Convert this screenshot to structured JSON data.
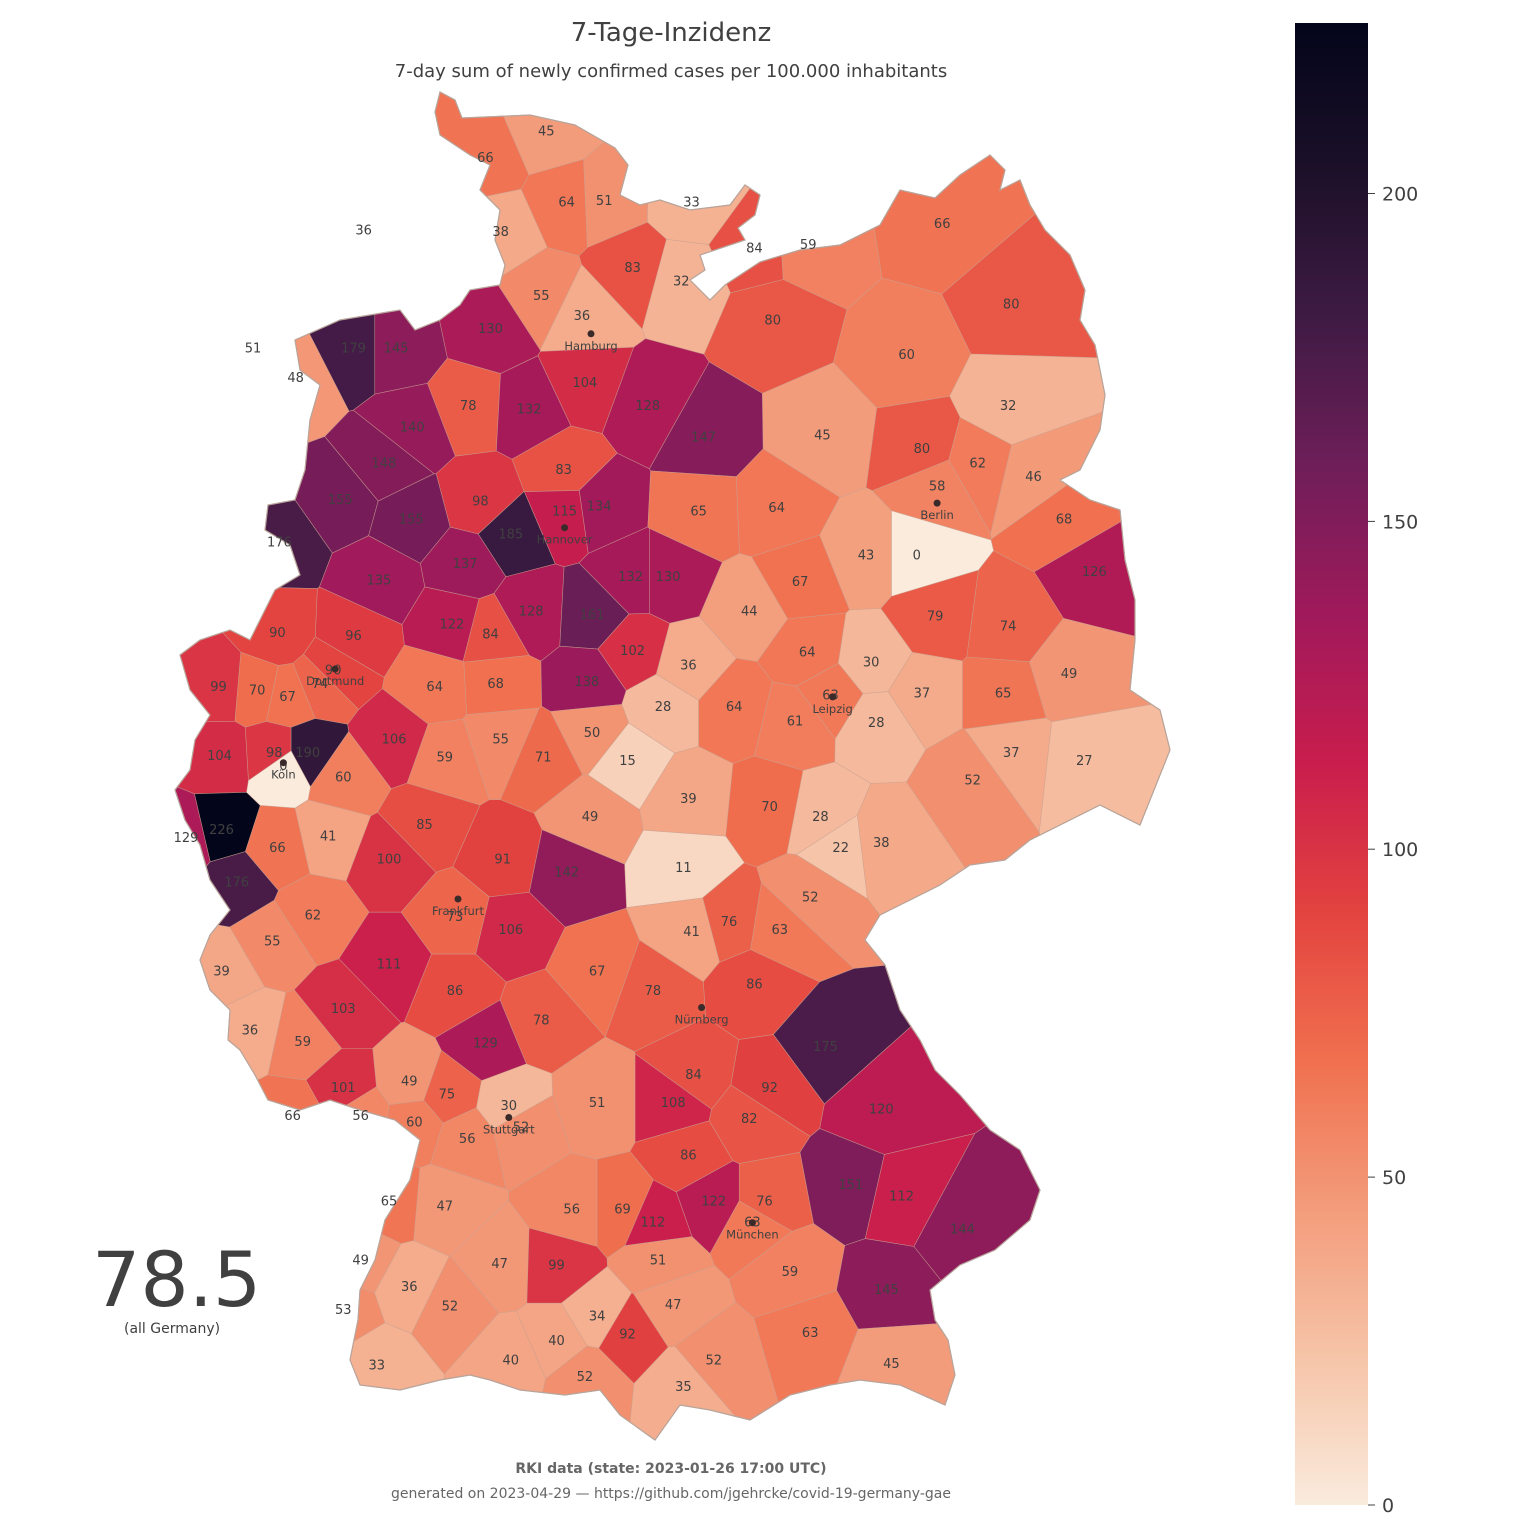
{
  "title": "7-Tage-Inzidenz",
  "subtitle": "7-day sum of newly confirmed cases per 100.000 inhabitants",
  "summary": {
    "value": "78.5",
    "caption": "(all Germany)"
  },
  "footer": {
    "source": "RKI data (state: 2023-01-26 17:00 UTC)",
    "generated": "generated on 2023-04-29 — https://github.com/jgehrcke/covid-19-germany-gae"
  },
  "colors": {
    "scale_stops": [
      "#faebdd",
      "#f6c4a8",
      "#f39c7b",
      "#f0704f",
      "#e3433f",
      "#c91d4d",
      "#a01a5b",
      "#6f1e59",
      "#3f1b44",
      "#1c1029",
      "#03051a"
    ],
    "land_outline": "#b8a49a",
    "background": "#ffffff"
  },
  "chart_data": {
    "type": "choropleth",
    "metric": "7-day incidence per 100.000 inhabitants",
    "colorbar": {
      "min": 0,
      "max": 226,
      "ticks": [
        0,
        50,
        100,
        150,
        200
      ]
    },
    "cities": [
      {
        "name": "Hamburg",
        "lon": 9.99,
        "lat": 53.55
      },
      {
        "name": "Berlin",
        "lon": 13.4,
        "lat": 52.52
      },
      {
        "name": "Hannover",
        "lon": 9.73,
        "lat": 52.37
      },
      {
        "name": "Dortmund",
        "lon": 7.47,
        "lat": 51.51
      },
      {
        "name": "Köln",
        "lon": 6.96,
        "lat": 50.94
      },
      {
        "name": "Leipzig",
        "lon": 12.37,
        "lat": 51.34
      },
      {
        "name": "Frankfurt",
        "lon": 8.68,
        "lat": 50.11
      },
      {
        "name": "Nürnberg",
        "lon": 11.08,
        "lat": 49.45
      },
      {
        "name": "Stuttgart",
        "lon": 9.18,
        "lat": 48.78
      },
      {
        "name": "München",
        "lon": 11.58,
        "lat": 48.14
      }
    ],
    "district_values": [
      {
        "lon": 9.55,
        "lat": 54.78,
        "value": 45
      },
      {
        "lon": 8.95,
        "lat": 54.62,
        "value": 66
      },
      {
        "lon": 9.75,
        "lat": 54.35,
        "value": 64
      },
      {
        "lon": 10.12,
        "lat": 54.36,
        "value": 51
      },
      {
        "lon": 10.98,
        "lat": 54.35,
        "value": 33
      },
      {
        "lon": 9.1,
        "lat": 54.17,
        "value": 38
      },
      {
        "lon": 7.75,
        "lat": 54.18,
        "value": 36
      },
      {
        "lon": 11.6,
        "lat": 54.07,
        "value": 84
      },
      {
        "lon": 12.13,
        "lat": 54.09,
        "value": 59
      },
      {
        "lon": 13.45,
        "lat": 54.22,
        "value": 66
      },
      {
        "lon": 10.4,
        "lat": 53.95,
        "value": 83
      },
      {
        "lon": 10.88,
        "lat": 53.87,
        "value": 32
      },
      {
        "lon": 9.5,
        "lat": 53.78,
        "value": 55
      },
      {
        "lon": 9.9,
        "lat": 53.66,
        "value": 36
      },
      {
        "lon": 11.78,
        "lat": 53.63,
        "value": 80
      },
      {
        "lon": 14.13,
        "lat": 53.73,
        "value": 80
      },
      {
        "lon": 9.0,
        "lat": 53.58,
        "value": 130
      },
      {
        "lon": 13.1,
        "lat": 53.42,
        "value": 60
      },
      {
        "lon": 6.66,
        "lat": 53.46,
        "value": 51
      },
      {
        "lon": 7.65,
        "lat": 53.46,
        "value": 179
      },
      {
        "lon": 8.07,
        "lat": 53.46,
        "value": 145
      },
      {
        "lon": 7.08,
        "lat": 53.28,
        "value": 48
      },
      {
        "lon": 9.93,
        "lat": 53.25,
        "value": 104
      },
      {
        "lon": 8.78,
        "lat": 53.11,
        "value": 78
      },
      {
        "lon": 9.38,
        "lat": 53.09,
        "value": 132
      },
      {
        "lon": 10.55,
        "lat": 53.11,
        "value": 128
      },
      {
        "lon": 14.1,
        "lat": 53.11,
        "value": 32
      },
      {
        "lon": 8.23,
        "lat": 52.98,
        "value": 140
      },
      {
        "lon": 11.1,
        "lat": 52.92,
        "value": 147
      },
      {
        "lon": 12.27,
        "lat": 52.93,
        "value": 45
      },
      {
        "lon": 13.25,
        "lat": 52.85,
        "value": 80
      },
      {
        "lon": 7.95,
        "lat": 52.76,
        "value": 148
      },
      {
        "lon": 9.72,
        "lat": 52.72,
        "value": 83
      },
      {
        "lon": 13.8,
        "lat": 52.76,
        "value": 62
      },
      {
        "lon": 14.35,
        "lat": 52.68,
        "value": 46
      },
      {
        "lon": 7.52,
        "lat": 52.54,
        "value": 155
      },
      {
        "lon": 8.9,
        "lat": 52.53,
        "value": 98
      },
      {
        "lon": 10.07,
        "lat": 52.5,
        "value": 134
      },
      {
        "lon": 11.05,
        "lat": 52.47,
        "value": 65
      },
      {
        "lon": 11.82,
        "lat": 52.49,
        "value": 64
      },
      {
        "lon": 14.65,
        "lat": 52.42,
        "value": 68
      },
      {
        "lon": 8.22,
        "lat": 52.42,
        "value": 155
      },
      {
        "lon": 9.2,
        "lat": 52.33,
        "value": 185
      },
      {
        "lon": 13.4,
        "lat": 52.62,
        "value": 58
      },
      {
        "lon": 6.92,
        "lat": 52.28,
        "value": 176
      },
      {
        "lon": 13.2,
        "lat": 52.2,
        "value": 0
      },
      {
        "lon": 12.7,
        "lat": 52.2,
        "value": 43
      },
      {
        "lon": 9.73,
        "lat": 52.47,
        "value": 115
      },
      {
        "lon": 8.75,
        "lat": 52.15,
        "value": 137
      },
      {
        "lon": 7.9,
        "lat": 52.05,
        "value": 135
      },
      {
        "lon": 10.38,
        "lat": 52.07,
        "value": 132
      },
      {
        "lon": 10.75,
        "lat": 52.07,
        "value": 130
      },
      {
        "lon": 12.05,
        "lat": 52.04,
        "value": 67
      },
      {
        "lon": 14.95,
        "lat": 52.1,
        "value": 126
      },
      {
        "lon": 9.4,
        "lat": 51.86,
        "value": 128
      },
      {
        "lon": 10.0,
        "lat": 51.84,
        "value": 161
      },
      {
        "lon": 11.55,
        "lat": 51.86,
        "value": 44
      },
      {
        "lon": 13.38,
        "lat": 51.83,
        "value": 79
      },
      {
        "lon": 14.1,
        "lat": 51.77,
        "value": 74
      },
      {
        "lon": 6.9,
        "lat": 51.73,
        "value": 90
      },
      {
        "lon": 7.65,
        "lat": 51.71,
        "value": 96
      },
      {
        "lon": 8.62,
        "lat": 51.78,
        "value": 122
      },
      {
        "lon": 9.0,
        "lat": 51.72,
        "value": 84
      },
      {
        "lon": 10.4,
        "lat": 51.62,
        "value": 102
      },
      {
        "lon": 12.12,
        "lat": 51.61,
        "value": 64
      },
      {
        "lon": 12.75,
        "lat": 51.55,
        "value": 30
      },
      {
        "lon": 10.95,
        "lat": 51.53,
        "value": 36
      },
      {
        "lon": 14.7,
        "lat": 51.48,
        "value": 49
      },
      {
        "lon": 6.32,
        "lat": 51.4,
        "value": 99
      },
      {
        "lon": 6.7,
        "lat": 51.38,
        "value": 70
      },
      {
        "lon": 7.32,
        "lat": 51.42,
        "value": 74
      },
      {
        "lon": 8.45,
        "lat": 51.4,
        "value": 64
      },
      {
        "lon": 9.05,
        "lat": 51.42,
        "value": 68
      },
      {
        "lon": 9.95,
        "lat": 51.43,
        "value": 138
      },
      {
        "lon": 7.0,
        "lat": 51.34,
        "value": 67
      },
      {
        "lon": 7.45,
        "lat": 51.5,
        "value": 90
      },
      {
        "lon": 10.7,
        "lat": 51.28,
        "value": 28
      },
      {
        "lon": 11.4,
        "lat": 51.28,
        "value": 64
      },
      {
        "lon": 13.25,
        "lat": 51.36,
        "value": 37
      },
      {
        "lon": 14.05,
        "lat": 51.36,
        "value": 65
      },
      {
        "lon": 12.0,
        "lat": 51.19,
        "value": 61
      },
      {
        "lon": 12.35,
        "lat": 51.35,
        "value": 63
      },
      {
        "lon": 12.8,
        "lat": 51.18,
        "value": 28
      },
      {
        "lon": 10.0,
        "lat": 51.12,
        "value": 50
      },
      {
        "lon": 8.05,
        "lat": 51.08,
        "value": 106
      },
      {
        "lon": 9.1,
        "lat": 51.08,
        "value": 55
      },
      {
        "lon": 14.13,
        "lat": 51.0,
        "value": 37
      },
      {
        "lon": 14.85,
        "lat": 50.95,
        "value": 27
      },
      {
        "lon": 6.33,
        "lat": 50.98,
        "value": 104
      },
      {
        "lon": 6.87,
        "lat": 51.0,
        "value": 98
      },
      {
        "lon": 7.2,
        "lat": 51.0,
        "value": 190
      },
      {
        "lon": 8.55,
        "lat": 50.97,
        "value": 59
      },
      {
        "lon": 9.52,
        "lat": 50.97,
        "value": 71
      },
      {
        "lon": 10.35,
        "lat": 50.95,
        "value": 15
      },
      {
        "lon": 7.55,
        "lat": 50.85,
        "value": 60
      },
      {
        "lon": 13.75,
        "lat": 50.83,
        "value": 52
      },
      {
        "lon": 10.95,
        "lat": 50.72,
        "value": 39
      },
      {
        "lon": 11.75,
        "lat": 50.67,
        "value": 70
      },
      {
        "lon": 12.25,
        "lat": 50.61,
        "value": 28
      },
      {
        "lon": 9.98,
        "lat": 50.61,
        "value": 49
      },
      {
        "lon": 8.35,
        "lat": 50.56,
        "value": 85
      },
      {
        "lon": 6.35,
        "lat": 50.53,
        "value": 226
      },
      {
        "lon": 6.0,
        "lat": 50.48,
        "value": 129
      },
      {
        "lon": 6.96,
        "lat": 50.92,
        "value": 0
      },
      {
        "lon": 7.4,
        "lat": 50.49,
        "value": 41
      },
      {
        "lon": 12.85,
        "lat": 50.45,
        "value": 38
      },
      {
        "lon": 12.45,
        "lat": 50.42,
        "value": 22
      },
      {
        "lon": 6.9,
        "lat": 50.42,
        "value": 66
      },
      {
        "lon": 8.0,
        "lat": 50.35,
        "value": 100
      },
      {
        "lon": 9.12,
        "lat": 50.35,
        "value": 91
      },
      {
        "lon": 9.75,
        "lat": 50.27,
        "value": 142
      },
      {
        "lon": 10.9,
        "lat": 50.3,
        "value": 11
      },
      {
        "lon": 6.5,
        "lat": 50.21,
        "value": 176
      },
      {
        "lon": 12.15,
        "lat": 50.12,
        "value": 52
      },
      {
        "lon": 7.25,
        "lat": 50.01,
        "value": 62
      },
      {
        "lon": 8.65,
        "lat": 50.0,
        "value": 73
      },
      {
        "lon": 11.35,
        "lat": 49.97,
        "value": 76
      },
      {
        "lon": 11.85,
        "lat": 49.92,
        "value": 63
      },
      {
        "lon": 9.2,
        "lat": 49.92,
        "value": 106
      },
      {
        "lon": 10.98,
        "lat": 49.91,
        "value": 41
      },
      {
        "lon": 6.85,
        "lat": 49.85,
        "value": 55
      },
      {
        "lon": 8.0,
        "lat": 49.71,
        "value": 111
      },
      {
        "lon": 6.35,
        "lat": 49.67,
        "value": 39
      },
      {
        "lon": 10.05,
        "lat": 49.67,
        "value": 67
      },
      {
        "lon": 11.6,
        "lat": 49.59,
        "value": 86
      },
      {
        "lon": 8.65,
        "lat": 49.55,
        "value": 86
      },
      {
        "lon": 10.6,
        "lat": 49.55,
        "value": 78
      },
      {
        "lon": 7.55,
        "lat": 49.44,
        "value": 103
      },
      {
        "lon": 9.5,
        "lat": 49.37,
        "value": 78
      },
      {
        "lon": 6.63,
        "lat": 49.31,
        "value": 36
      },
      {
        "lon": 7.15,
        "lat": 49.24,
        "value": 59
      },
      {
        "lon": 8.95,
        "lat": 49.23,
        "value": 129
      },
      {
        "lon": 12.3,
        "lat": 49.21,
        "value": 175
      },
      {
        "lon": 8.2,
        "lat": 49.0,
        "value": 49
      },
      {
        "lon": 11.0,
        "lat": 49.04,
        "value": 84
      },
      {
        "lon": 11.75,
        "lat": 48.96,
        "value": 92
      },
      {
        "lon": 7.55,
        "lat": 48.96,
        "value": 101
      },
      {
        "lon": 8.57,
        "lat": 48.92,
        "value": 75
      },
      {
        "lon": 10.05,
        "lat": 48.87,
        "value": 51
      },
      {
        "lon": 10.8,
        "lat": 48.87,
        "value": 108
      },
      {
        "lon": 12.85,
        "lat": 48.83,
        "value": 120
      },
      {
        "lon": 11.55,
        "lat": 48.77,
        "value": 82
      },
      {
        "lon": 7.05,
        "lat": 48.79,
        "value": 66
      },
      {
        "lon": 7.72,
        "lat": 48.79,
        "value": 56
      },
      {
        "lon": 8.25,
        "lat": 48.75,
        "value": 60
      },
      {
        "lon": 9.3,
        "lat": 48.72,
        "value": 52
      },
      {
        "lon": 8.77,
        "lat": 48.65,
        "value": 56
      },
      {
        "lon": 10.95,
        "lat": 48.55,
        "value": 86
      },
      {
        "lon": 12.55,
        "lat": 48.37,
        "value": 151
      },
      {
        "lon": 11.7,
        "lat": 48.27,
        "value": 76
      },
      {
        "lon": 9.18,
        "lat": 48.85,
        "value": 30
      },
      {
        "lon": 13.05,
        "lat": 48.3,
        "value": 112
      },
      {
        "lon": 11.2,
        "lat": 48.27,
        "value": 122
      },
      {
        "lon": 8.0,
        "lat": 48.27,
        "value": 65
      },
      {
        "lon": 8.55,
        "lat": 48.24,
        "value": 47
      },
      {
        "lon": 9.8,
        "lat": 48.22,
        "value": 56
      },
      {
        "lon": 10.3,
        "lat": 48.22,
        "value": 69
      },
      {
        "lon": 10.6,
        "lat": 48.14,
        "value": 112
      },
      {
        "lon": 13.65,
        "lat": 48.1,
        "value": 144
      },
      {
        "lon": 10.65,
        "lat": 47.91,
        "value": 51
      },
      {
        "lon": 7.72,
        "lat": 47.91,
        "value": 49
      },
      {
        "lon": 9.09,
        "lat": 47.89,
        "value": 47
      },
      {
        "lon": 9.65,
        "lat": 47.88,
        "value": 99
      },
      {
        "lon": 11.95,
        "lat": 47.84,
        "value": 59
      },
      {
        "lon": 8.2,
        "lat": 47.75,
        "value": 36
      },
      {
        "lon": 12.9,
        "lat": 47.73,
        "value": 145
      },
      {
        "lon": 11.58,
        "lat": 48.14,
        "value": 63
      },
      {
        "lon": 7.55,
        "lat": 47.61,
        "value": 53
      },
      {
        "lon": 8.6,
        "lat": 47.63,
        "value": 52
      },
      {
        "lon": 10.8,
        "lat": 47.64,
        "value": 47
      },
      {
        "lon": 10.05,
        "lat": 47.57,
        "value": 34
      },
      {
        "lon": 10.35,
        "lat": 47.46,
        "value": 92
      },
      {
        "lon": 12.15,
        "lat": 47.47,
        "value": 63
      },
      {
        "lon": 9.65,
        "lat": 47.42,
        "value": 40
      },
      {
        "lon": 9.2,
        "lat": 47.3,
        "value": 40
      },
      {
        "lon": 11.2,
        "lat": 47.3,
        "value": 52
      },
      {
        "lon": 12.95,
        "lat": 47.28,
        "value": 45
      },
      {
        "lon": 7.88,
        "lat": 47.27,
        "value": 33
      },
      {
        "lon": 9.93,
        "lat": 47.2,
        "value": 52
      },
      {
        "lon": 10.9,
        "lat": 47.14,
        "value": 35
      }
    ]
  }
}
